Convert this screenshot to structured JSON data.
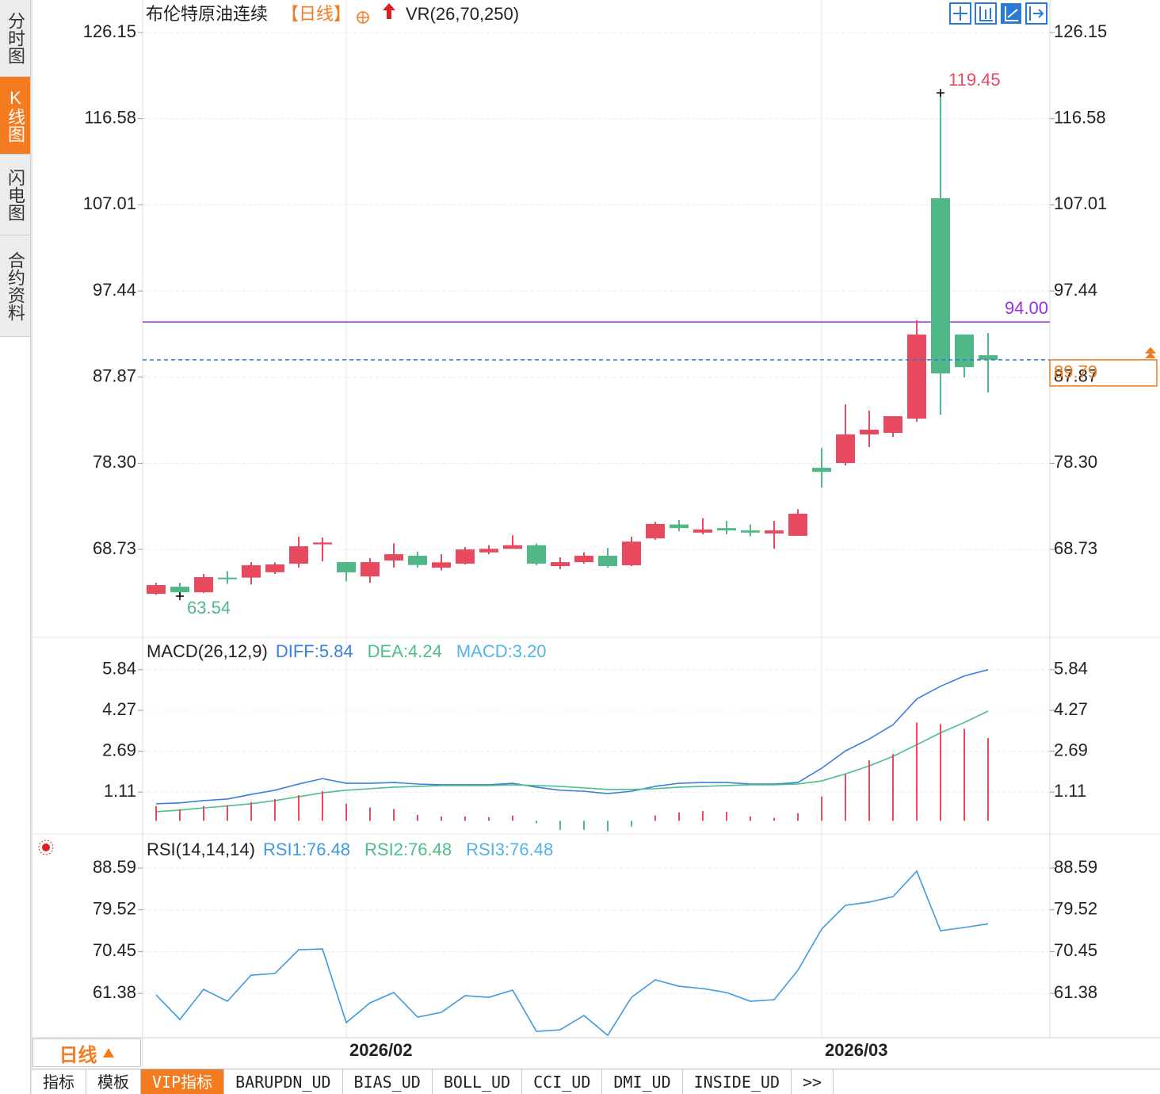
{
  "ui": {
    "sidebar": {
      "tabs": [
        "分时图",
        "K线图",
        "闪电图",
        "合约资料"
      ],
      "active": 1
    },
    "period_button": "日线",
    "bottom_tabs": {
      "tabs": [
        "指标",
        "模板",
        "VIP指标",
        "BARUPDN_UD",
        "BIAS_UD",
        "BOLL_UD",
        "CCI_UD",
        "DMI_UD",
        "INSIDE_UD",
        ">>"
      ],
      "active": 2
    }
  },
  "chart_data": [
    {
      "type": "candlestick",
      "title": "布伦特原油连续",
      "period": "【日线】",
      "indicator": "VR(26,70,250)",
      "categories": [
        null,
        null,
        null,
        null,
        null,
        null,
        null,
        null,
        "2026/02",
        null,
        null,
        null,
        null,
        null,
        null,
        null,
        null,
        null,
        null,
        null,
        null,
        null,
        null,
        null,
        null,
        null,
        null,
        null,
        "2026/03",
        null,
        null,
        null,
        null,
        null,
        null,
        null
      ],
      "open": [
        63.8,
        64.59,
        63.97,
        65.6,
        65.6,
        66.2,
        67.15,
        69.3,
        67.32,
        65.73,
        67.5,
        68.03,
        66.7,
        67.15,
        68.4,
        68.8,
        69.2,
        66.88,
        67.32,
        68.03,
        66.97,
        69.96,
        71.5,
        70.6,
        71.1,
        70.84,
        70.5,
        70.24,
        77.8,
        78.33,
        81.5,
        81.68,
        83.26,
        107.74,
        92.6,
        90.3
      ],
      "high": [
        65.03,
        65.03,
        66.0,
        66.3,
        67.32,
        67.3,
        70.14,
        70.05,
        67.32,
        67.76,
        69.4,
        68.5,
        68.2,
        69.0,
        69.2,
        70.3,
        69.4,
        67.85,
        68.4,
        68.9,
        70.14,
        71.8,
        71.99,
        72.2,
        71.9,
        71.5,
        71.9,
        73.2,
        80.0,
        84.85,
        84.15,
        83.53,
        94.18,
        119.45,
        92.6,
        92.77
      ],
      "low": [
        63.7,
        63.54,
        63.9,
        64.9,
        64.85,
        66.0,
        66.7,
        67.4,
        65.2,
        65.03,
        66.7,
        66.7,
        66.4,
        67.06,
        68.2,
        68.8,
        66.97,
        66.53,
        67.15,
        66.7,
        66.88,
        69.8,
        70.75,
        70.4,
        70.4,
        70.2,
        68.8,
        70.24,
        75.6,
        78.06,
        80.09,
        81.24,
        82.9,
        83.7,
        87.84,
        86.17
      ],
      "close": [
        64.77,
        63.97,
        65.65,
        65.45,
        66.97,
        67.06,
        69.08,
        69.5,
        66.18,
        67.32,
        68.2,
        67.0,
        67.3,
        68.73,
        68.8,
        69.2,
        67.15,
        67.32,
        68.03,
        66.88,
        69.6,
        71.56,
        71.1,
        70.95,
        70.84,
        70.6,
        70.84,
        72.7,
        77.35,
        81.5,
        82.03,
        83.53,
        92.6,
        88.28,
        88.98,
        89.79
      ],
      "up_color": "#e8495e",
      "down_color": "#4fb886",
      "max_label": "119.45",
      "min_label": "63.54",
      "reference_line": {
        "value": 94,
        "label": "94.00",
        "color": "#9a2ee0"
      },
      "last_price": {
        "value": 89.79,
        "label": "89.79",
        "color": "#f07a1a"
      },
      "ylim": [
        59.05,
        129.76
      ],
      "yticks": [
        126.15,
        116.58,
        107.01,
        97.44,
        87.87,
        {
          "value": 78.3,
          "label": "78.30"
        },
        68.73
      ],
      "grid": true
    },
    {
      "type": "macd",
      "title": "MACD(26,12,9)",
      "series": [
        {
          "name": "DIFF:5.84",
          "color": "#3a7fe0",
          "kind": "line",
          "values": [
            0.66,
            0.69,
            0.78,
            0.84,
            1.02,
            1.18,
            1.42,
            1.63,
            1.45,
            1.45,
            1.48,
            1.42,
            1.39,
            1.39,
            1.39,
            1.45,
            1.3,
            1.18,
            1.14,
            1.05,
            1.14,
            1.33,
            1.45,
            1.48,
            1.48,
            1.42,
            1.42,
            1.48,
            2.03,
            2.7,
            3.16,
            3.71,
            4.71,
            5.2,
            5.6,
            5.84
          ]
        },
        {
          "name": "DEA:4.24",
          "color": "#4cbf86",
          "kind": "line",
          "values": [
            0.35,
            0.41,
            0.5,
            0.57,
            0.66,
            0.78,
            0.93,
            1.08,
            1.18,
            1.24,
            1.3,
            1.33,
            1.36,
            1.36,
            1.36,
            1.39,
            1.36,
            1.33,
            1.27,
            1.21,
            1.21,
            1.24,
            1.3,
            1.33,
            1.36,
            1.39,
            1.39,
            1.42,
            1.54,
            1.81,
            2.12,
            2.49,
            2.94,
            3.4,
            3.8,
            4.24
          ]
        },
        {
          "name": "MACD:3.20",
          "color": "#52b4ea",
          "kind": "bar",
          "up_color": "#e8495e",
          "down_color": "#4fb886",
          "values": [
            0.57,
            0.45,
            0.57,
            0.6,
            0.72,
            0.84,
            0.99,
            1.15,
            0.66,
            0.51,
            0.45,
            0.23,
            0.17,
            0.17,
            0.14,
            0.2,
            -0.1,
            -0.35,
            -0.35,
            -0.41,
            -0.23,
            0.2,
            0.32,
            0.38,
            0.35,
            0.17,
            0.11,
            0.29,
            0.93,
            1.79,
            2.34,
            2.58,
            3.8,
            3.74,
            3.56,
            3.2
          ]
        }
      ],
      "ylim": [
        -0.45,
        7.06
      ],
      "yticks": [
        5.84,
        4.27,
        2.69,
        1.11
      ],
      "grid": true
    },
    {
      "type": "line",
      "title": "RSI(14,14,14)",
      "series": [
        {
          "name": "RSI1:76.48",
          "color": "#3c9be0",
          "values": [
            61.05,
            55.72,
            62.26,
            59.67,
            65.35,
            65.7,
            70.86,
            71.03,
            55.03,
            59.33,
            61.57,
            56.23,
            57.26,
            60.88,
            60.53,
            62.08,
            53.13,
            53.48,
            56.58,
            52.27,
            60.53,
            64.32,
            62.94,
            62.43,
            61.57,
            59.67,
            60.02,
            66.39,
            75.34,
            80.5,
            81.19,
            82.39,
            87.9,
            74.99,
            75.68,
            76.48
          ]
        },
        {
          "name": "RSI2:76.48",
          "color": "#4cbf86"
        },
        {
          "name": "RSI3:76.48",
          "color": "#52b4ea"
        }
      ],
      "ylim": [
        51.93,
        95.47
      ],
      "yticks": [
        88.59,
        79.52,
        70.45,
        61.38
      ],
      "grid": true
    }
  ]
}
